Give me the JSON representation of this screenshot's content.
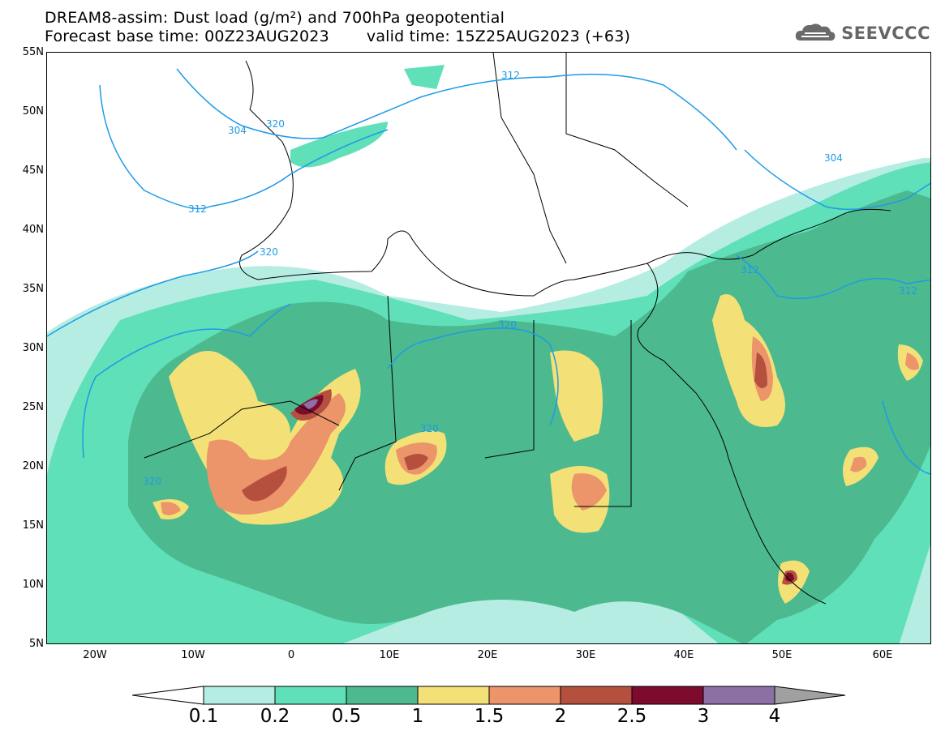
{
  "header": {
    "title_line1": "DREAM8-assim: Dust load (g/m²) and 700hPa geopotential",
    "base_time": "Forecast base time: 00Z23AUG2023",
    "valid_time": "valid time: 15Z25AUG2023 (+63)"
  },
  "logo": {
    "icon": "cloud-logo-icon",
    "text": "SEEVCCC"
  },
  "map": {
    "lat_labels": [
      "55N",
      "50N",
      "45N",
      "40N",
      "35N",
      "30N",
      "25N",
      "20N",
      "15N",
      "10N",
      "5N"
    ],
    "lon_labels": [
      "20W",
      "10W",
      "0",
      "10E",
      "20E",
      "30E",
      "40E",
      "50E",
      "60E"
    ],
    "lat_range": [
      5,
      55
    ],
    "lon_range": [
      -25,
      65
    ],
    "contour_labels": [
      "320",
      "312",
      "304",
      "312",
      "320",
      "320",
      "320",
      "312",
      "304",
      "312",
      "320"
    ],
    "colors": {
      "contour": "#1e9be6",
      "level_0_1": "#b5ede3",
      "level_0_2": "#5fe0b8",
      "level_0_5": "#4cb98f",
      "level_1": "#f3e178",
      "level_1_5": "#ec946a",
      "level_2": "#b5503f",
      "level_2_5": "#7c0b2e",
      "level_3": "#8c6fa5",
      "level_4": "#a0a0a0"
    }
  },
  "colorbar": {
    "labels": [
      "0.1",
      "0.2",
      "0.5",
      "1",
      "1.5",
      "2",
      "2.5",
      "3",
      "4"
    ],
    "colors": [
      "#b5ede3",
      "#5fe0b8",
      "#4cb98f",
      "#f3e178",
      "#ec946a",
      "#b5503f",
      "#7c0b2e",
      "#8c6fa5"
    ]
  }
}
